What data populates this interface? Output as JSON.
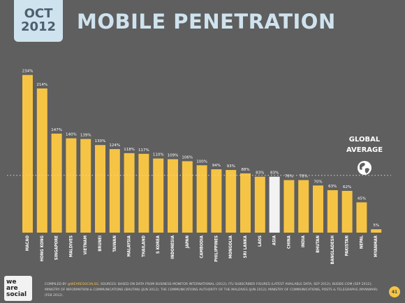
{
  "header": {
    "date_month": "OCT",
    "date_year": "2012",
    "title": "MOBILE PENETRATION"
  },
  "global_label_line1": "GLOBAL",
  "global_label_line2": "AVERAGE",
  "global_icon": "globe-icon",
  "logo": {
    "line1": "we",
    "line2": "are",
    "line3": "social"
  },
  "footer": {
    "prefix": "COMPILED BY ",
    "highlight": "@WEARESOCIALSG",
    "rest": ". SOURCES: BASED ON DATA FROM BUSINESS MONITOR INTERNATIONAL (2012); ITU SUBSCRIBER FIGURES (LATEST AVAILABLE DATA, SEP 2012); BUDDE.COM (SEP 2012); MINISTRY OF INFORMATION & COMMUNICATIONS (BHUTAN) (JUN 2012); THE COMMUNICATIONS AUTHORITY OF THE MALDIVES (JUN 2012); MINISTRY OF COMMUNICATIONS, POSTS & TELEGRAPHS (MYANMAR) (FEB 2012)."
  },
  "page_number": "41",
  "colors": {
    "bar": "#f6c444",
    "highlight_bar": "#f2f2f2",
    "background": "#5f5f5f",
    "title": "#cfe3ee"
  },
  "chart_data": {
    "type": "bar",
    "title": "MOBILE PENETRATION",
    "categories": [
      "MACAO",
      "HONG KONG",
      "SINGAPORE",
      "MALDIVES",
      "VIETNAM",
      "BRUNEI",
      "TAIWAN",
      "MALAYSIA",
      "THAILAND",
      "S KOREA",
      "INDONESIA",
      "JAPAN",
      "CAMBODIA",
      "PHILIPPINES",
      "MONGOLIA",
      "SRI LANKA",
      "LAOS",
      "ASIA",
      "CHINA",
      "INDIA",
      "BHUTAN",
      "BANGLADESH",
      "PAKISTAN",
      "NEPAL",
      "MYANMAR"
    ],
    "values": [
      234,
      214,
      147,
      140,
      139,
      130,
      124,
      118,
      117,
      110,
      109,
      106,
      100,
      94,
      93,
      88,
      83,
      83,
      78,
      78,
      70,
      63,
      62,
      45,
      5
    ],
    "value_labels": [
      "234%",
      "214%",
      "147%",
      "140%",
      "139%",
      "130%",
      "124%",
      "118%",
      "117%",
      "110%",
      "109%",
      "106%",
      "100%",
      "94%",
      "93%",
      "88%",
      "83%",
      "83%",
      "78%",
      "78%",
      "70%",
      "63%",
      "62%",
      "45%",
      "5%"
    ],
    "highlight_category": "ASIA",
    "global_average": 85,
    "ylim": [
      0,
      245
    ],
    "grid": false,
    "xlabel": "",
    "ylabel": ""
  }
}
